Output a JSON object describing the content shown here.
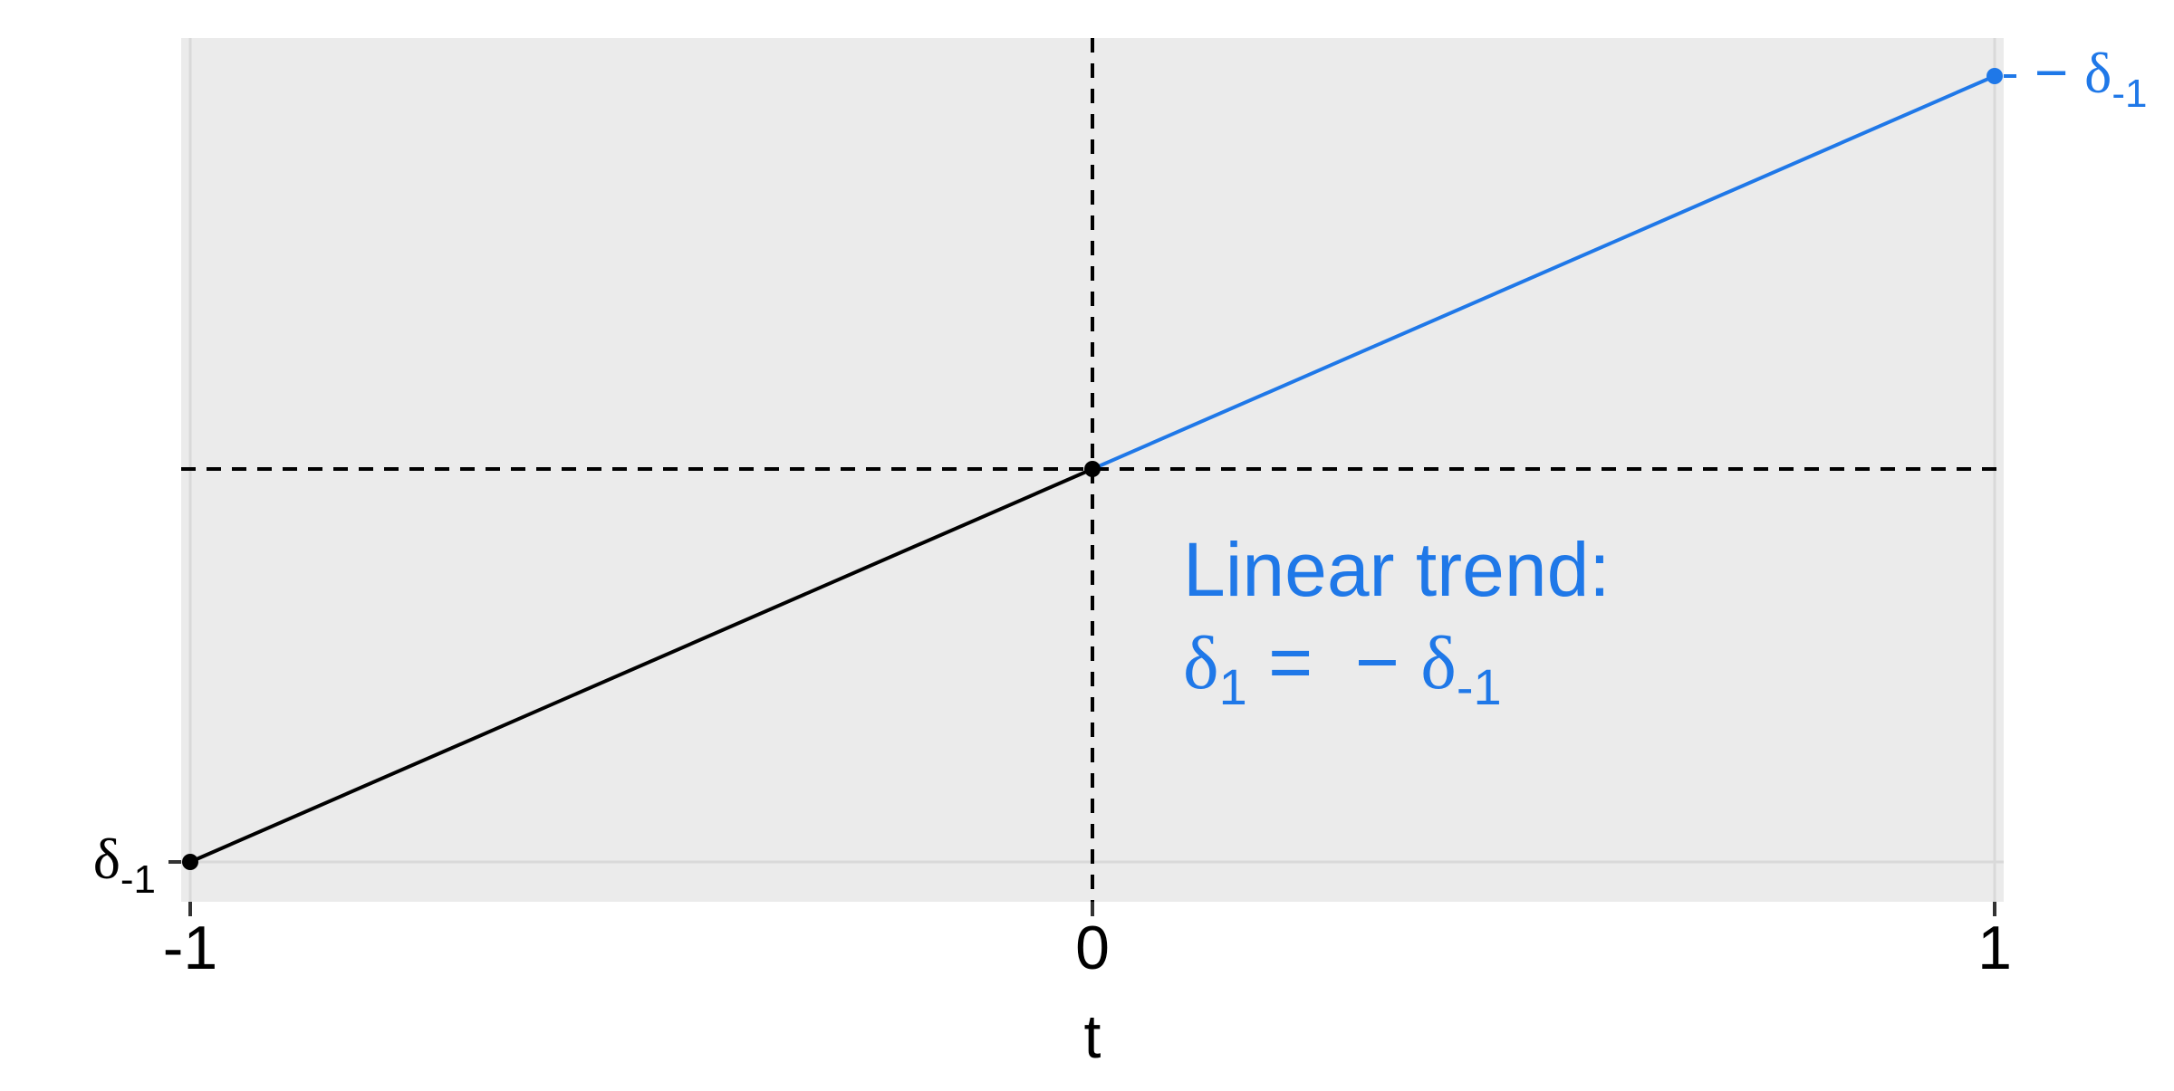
{
  "chart_data": {
    "type": "line",
    "xlabel": "t",
    "ylabel": "",
    "x_ticks": [
      "-1",
      "0",
      "1"
    ],
    "xlim": [
      -1,
      1
    ],
    "ylim": [
      -1,
      1
    ],
    "grid": true,
    "segments": [
      {
        "points": [
          {
            "x": -1,
            "y": -1
          },
          {
            "x": 0,
            "y": 0
          }
        ],
        "color": "#000000",
        "end_markers": [
          {
            "x": -1,
            "y": -1
          },
          {
            "x": 0,
            "y": 0
          }
        ]
      },
      {
        "points": [
          {
            "x": 0,
            "y": 0
          },
          {
            "x": 1,
            "y": 1
          }
        ],
        "color": "#1f78e8",
        "end_markers": [
          {
            "x": 1,
            "y": 1
          }
        ]
      }
    ],
    "reference_lines": [
      {
        "axis": "x",
        "value": 0,
        "style": "dashed"
      },
      {
        "axis": "y",
        "value": 0,
        "style": "dashed"
      }
    ],
    "point_labels": {
      "left": {
        "base": "δ",
        "sub": "-1",
        "color": "#000000"
      },
      "right": {
        "prefix": "− ",
        "base": "δ",
        "sub": "-1",
        "color": "#1f78e8"
      }
    },
    "annotation": {
      "line1": "Linear trend:",
      "line2_base1": "δ",
      "line2_sub1": "1",
      "line2_eq": " =  − ",
      "line2_base2": "δ",
      "line2_sub2": "-1",
      "color": "#1f78e8"
    },
    "colors": {
      "panel_background": "#ebebeb",
      "grid": "#d9d9d9",
      "accent": "#1f78e8"
    }
  }
}
